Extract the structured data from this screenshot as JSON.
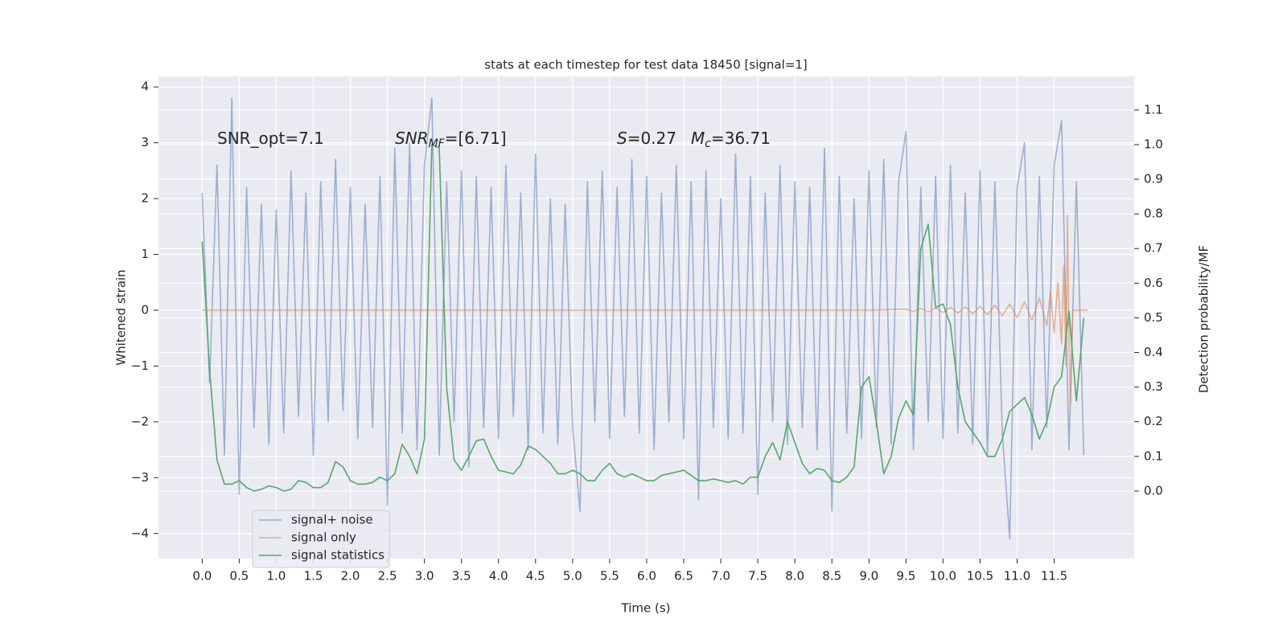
{
  "chart_data": {
    "type": "line",
    "title": "stats at each timestep for test data 18450 [signal=1]",
    "xlabel": "Time (s)",
    "ylabel": "Whitened strain",
    "y2label": "Detection probability/MF",
    "xlim": [
      -0.59,
      12.58
    ],
    "ylim": [
      -4.45,
      4.19
    ],
    "y2lim": [
      -0.195,
      1.197
    ],
    "xticks": [
      {
        "value": 0,
        "label": "0.0"
      },
      {
        "value": 0.5,
        "label": "0.5"
      },
      {
        "value": 1,
        "label": "1.0"
      },
      {
        "value": 1.5,
        "label": "1.5"
      },
      {
        "value": 2,
        "label": "2.0"
      },
      {
        "value": 2.5,
        "label": "2.5"
      },
      {
        "value": 3,
        "label": "3.0"
      },
      {
        "value": 3.5,
        "label": "3.5"
      },
      {
        "value": 4,
        "label": "4.0"
      },
      {
        "value": 4.5,
        "label": "4.5"
      },
      {
        "value": 5,
        "label": "5.0"
      },
      {
        "value": 5.5,
        "label": "5.5"
      },
      {
        "value": 6,
        "label": "6.0"
      },
      {
        "value": 6.5,
        "label": "6.5"
      },
      {
        "value": 7,
        "label": "7.0"
      },
      {
        "value": 7.5,
        "label": "7.5"
      },
      {
        "value": 8,
        "label": "8.0"
      },
      {
        "value": 8.5,
        "label": "8.5"
      },
      {
        "value": 9,
        "label": "9.0"
      },
      {
        "value": 9.5,
        "label": "9.5"
      },
      {
        "value": 10,
        "label": "10.0"
      },
      {
        "value": 10.5,
        "label": "10.5"
      },
      {
        "value": 11,
        "label": "11.0"
      },
      {
        "value": 11.5,
        "label": "11.5"
      }
    ],
    "yticks": [
      {
        "value": -4,
        "label": "−4"
      },
      {
        "value": -3,
        "label": "−3"
      },
      {
        "value": -2,
        "label": "−2"
      },
      {
        "value": -1,
        "label": "−1"
      },
      0,
      1,
      2,
      3,
      4
    ],
    "y2ticks": [
      {
        "value": 0,
        "label": "0.0"
      },
      {
        "value": 0.1,
        "label": "0.1"
      },
      {
        "value": 0.2,
        "label": "0.2"
      },
      {
        "value": 0.3,
        "label": "0.3"
      },
      {
        "value": 0.4,
        "label": "0.4"
      },
      {
        "value": 0.5,
        "label": "0.5"
      },
      {
        "value": 0.6,
        "label": "0.6"
      },
      {
        "value": 0.7,
        "label": "0.7"
      },
      {
        "value": 0.8,
        "label": "0.8"
      },
      {
        "value": 0.9,
        "label": "0.9"
      },
      {
        "value": 1.0,
        "label": "1.0"
      },
      {
        "value": 1.1,
        "label": "1.1"
      }
    ],
    "grid": true,
    "legend": "lower left",
    "annotations": [
      {
        "text": "SNR_opt=7.1"
      },
      {
        "main": "SNR",
        "sub": "MF",
        "rest": "=[6.71]"
      },
      {
        "main": "S",
        "rest": "=0.27"
      },
      {
        "main": "M",
        "sub": "c",
        "rest": "=36.71"
      }
    ],
    "x": [
      0,
      0.1,
      0.2,
      0.3,
      0.4,
      0.5,
      0.6,
      0.7,
      0.8,
      0.9,
      1,
      1.1,
      1.2,
      1.3,
      1.4,
      1.5,
      1.6,
      1.7,
      1.8,
      1.9,
      2,
      2.1,
      2.2,
      2.3,
      2.4,
      2.5,
      2.6,
      2.7,
      2.8,
      2.9,
      3,
      3.1,
      3.2,
      3.3,
      3.4,
      3.5,
      3.6,
      3.7,
      3.8,
      3.9,
      4,
      4.1,
      4.2,
      4.3,
      4.4,
      4.5,
      4.6,
      4.7,
      4.8,
      4.9,
      5,
      5.1,
      5.2,
      5.3,
      5.4,
      5.5,
      5.6,
      5.7,
      5.8,
      5.9,
      6,
      6.1,
      6.2,
      6.3,
      6.4,
      6.5,
      6.6,
      6.7,
      6.8,
      6.9,
      7,
      7.1,
      7.2,
      7.3,
      7.4,
      7.5,
      7.6,
      7.7,
      7.8,
      7.9,
      8,
      8.1,
      8.2,
      8.3,
      8.4,
      8.5,
      8.6,
      8.7,
      8.8,
      8.9,
      9,
      9.1,
      9.2,
      9.3,
      9.4,
      9.5,
      9.6,
      9.7,
      9.8,
      9.9,
      10,
      10.1,
      10.2,
      10.3,
      10.4,
      10.5,
      10.6,
      10.7,
      10.8,
      10.9,
      11,
      11.1,
      11.2,
      11.3,
      11.4,
      11.5,
      11.6,
      11.7,
      11.8,
      11.9
    ],
    "series": [
      {
        "name": "signal+ noise",
        "color": "#4c72b0",
        "alpha": 0.5,
        "values": [
          2.1,
          -1.3,
          2.6,
          -2.6,
          3.8,
          -3.3,
          2.2,
          -2.1,
          1.9,
          -2.4,
          1.8,
          -2.2,
          2.5,
          -1.9,
          2.1,
          -2.6,
          2.3,
          -2.0,
          2.7,
          -1.8,
          2.2,
          -2.3,
          1.9,
          -2.1,
          2.4,
          -3.5,
          2.9,
          -2.2,
          3.0,
          -2.5,
          2.6,
          3.8,
          -2.6,
          2.3,
          -2.0,
          2.5,
          -2.8,
          2.4,
          -2.1,
          2.2,
          -2.3,
          2.6,
          -1.9,
          2.1,
          -2.5,
          2.8,
          -2.2,
          2.0,
          -2.4,
          1.9,
          -2.1,
          -3.6,
          2.3,
          -2.0,
          2.5,
          -2.3,
          2.2,
          -1.9,
          2.7,
          -2.2,
          2.4,
          -2.5,
          2.1,
          -2.0,
          2.6,
          -2.3,
          2.3,
          -3.4,
          2.5,
          -2.1,
          2.0,
          -2.3,
          2.8,
          -2.2,
          2.4,
          -3.3,
          2.1,
          -2.0,
          2.6,
          -2.4,
          2.3,
          -2.1,
          2.2,
          -2.5,
          2.9,
          -3.6,
          2.4,
          -2.2,
          2.0,
          -2.3,
          2.5,
          -2.1,
          2.7,
          -2.4,
          2.3,
          3.2,
          -2.5,
          2.2,
          -2.0,
          2.4,
          -2.3,
          2.6,
          -2.2,
          2.1,
          -2.4,
          2.5,
          -2.6,
          2.3,
          -2.2,
          -4.1,
          2.2,
          3.0,
          -2.5,
          2.4,
          -2.1,
          2.6,
          3.4,
          -2.5,
          2.3,
          -2.6
        ]
      },
      {
        "name": "signal only",
        "color": "#dd8452",
        "alpha": 0.6,
        "x": [
          0,
          9.0,
          9.5,
          9.6,
          9.7,
          9.8,
          9.9,
          10.0,
          10.1,
          10.2,
          10.3,
          10.4,
          10.5,
          10.6,
          10.7,
          10.8,
          10.9,
          11.0,
          11.1,
          11.2,
          11.3,
          11.4,
          11.45,
          11.5,
          11.55,
          11.6,
          11.63,
          11.66,
          11.68,
          11.7,
          11.72,
          11.75,
          11.8,
          11.95
        ],
        "values": [
          0,
          0,
          0.02,
          -0.02,
          0.03,
          -0.03,
          0.04,
          -0.04,
          0.05,
          -0.05,
          0.06,
          -0.06,
          0.07,
          -0.08,
          0.09,
          -0.1,
          0.11,
          -0.13,
          0.15,
          -0.18,
          0.22,
          -0.28,
          0.33,
          -0.4,
          0.5,
          -0.6,
          0.8,
          -1.0,
          1.7,
          -0.5,
          -1.7,
          0,
          0,
          0
        ]
      },
      {
        "name": "signal statistics",
        "color": "#55a868",
        "alpha": 1,
        "axis": "y2",
        "values": [
          0.72,
          0.35,
          0.09,
          0.02,
          0.02,
          0.03,
          0.01,
          0.0,
          0.005,
          0.015,
          0.01,
          0.0,
          0.005,
          0.03,
          0.025,
          0.01,
          0.01,
          0.025,
          0.085,
          0.07,
          0.03,
          0.02,
          0.02,
          0.025,
          0.04,
          0.03,
          0.05,
          0.135,
          0.1,
          0.05,
          0.15,
          1.0,
          0.99,
          0.3,
          0.09,
          0.06,
          0.1,
          0.145,
          0.15,
          0.1,
          0.06,
          0.055,
          0.05,
          0.075,
          0.13,
          0.12,
          0.1,
          0.08,
          0.05,
          0.05,
          0.06,
          0.05,
          0.03,
          0.03,
          0.06,
          0.08,
          0.05,
          0.04,
          0.05,
          0.04,
          0.03,
          0.03,
          0.045,
          0.05,
          0.055,
          0.06,
          0.045,
          0.03,
          0.03,
          0.035,
          0.03,
          0.025,
          0.03,
          0.02,
          0.04,
          0.04,
          0.1,
          0.14,
          0.09,
          0.2,
          0.14,
          0.08,
          0.05,
          0.065,
          0.06,
          0.03,
          0.025,
          0.04,
          0.07,
          0.3,
          0.33,
          0.2,
          0.05,
          0.1,
          0.21,
          0.26,
          0.22,
          0.7,
          0.77,
          0.53,
          0.54,
          0.48,
          0.3,
          0.2,
          0.17,
          0.14,
          0.1,
          0.1,
          0.15,
          0.23,
          0.25,
          0.27,
          0.22,
          0.15,
          0.2,
          0.3,
          0.33,
          0.52,
          0.26,
          0.5
        ]
      }
    ]
  }
}
